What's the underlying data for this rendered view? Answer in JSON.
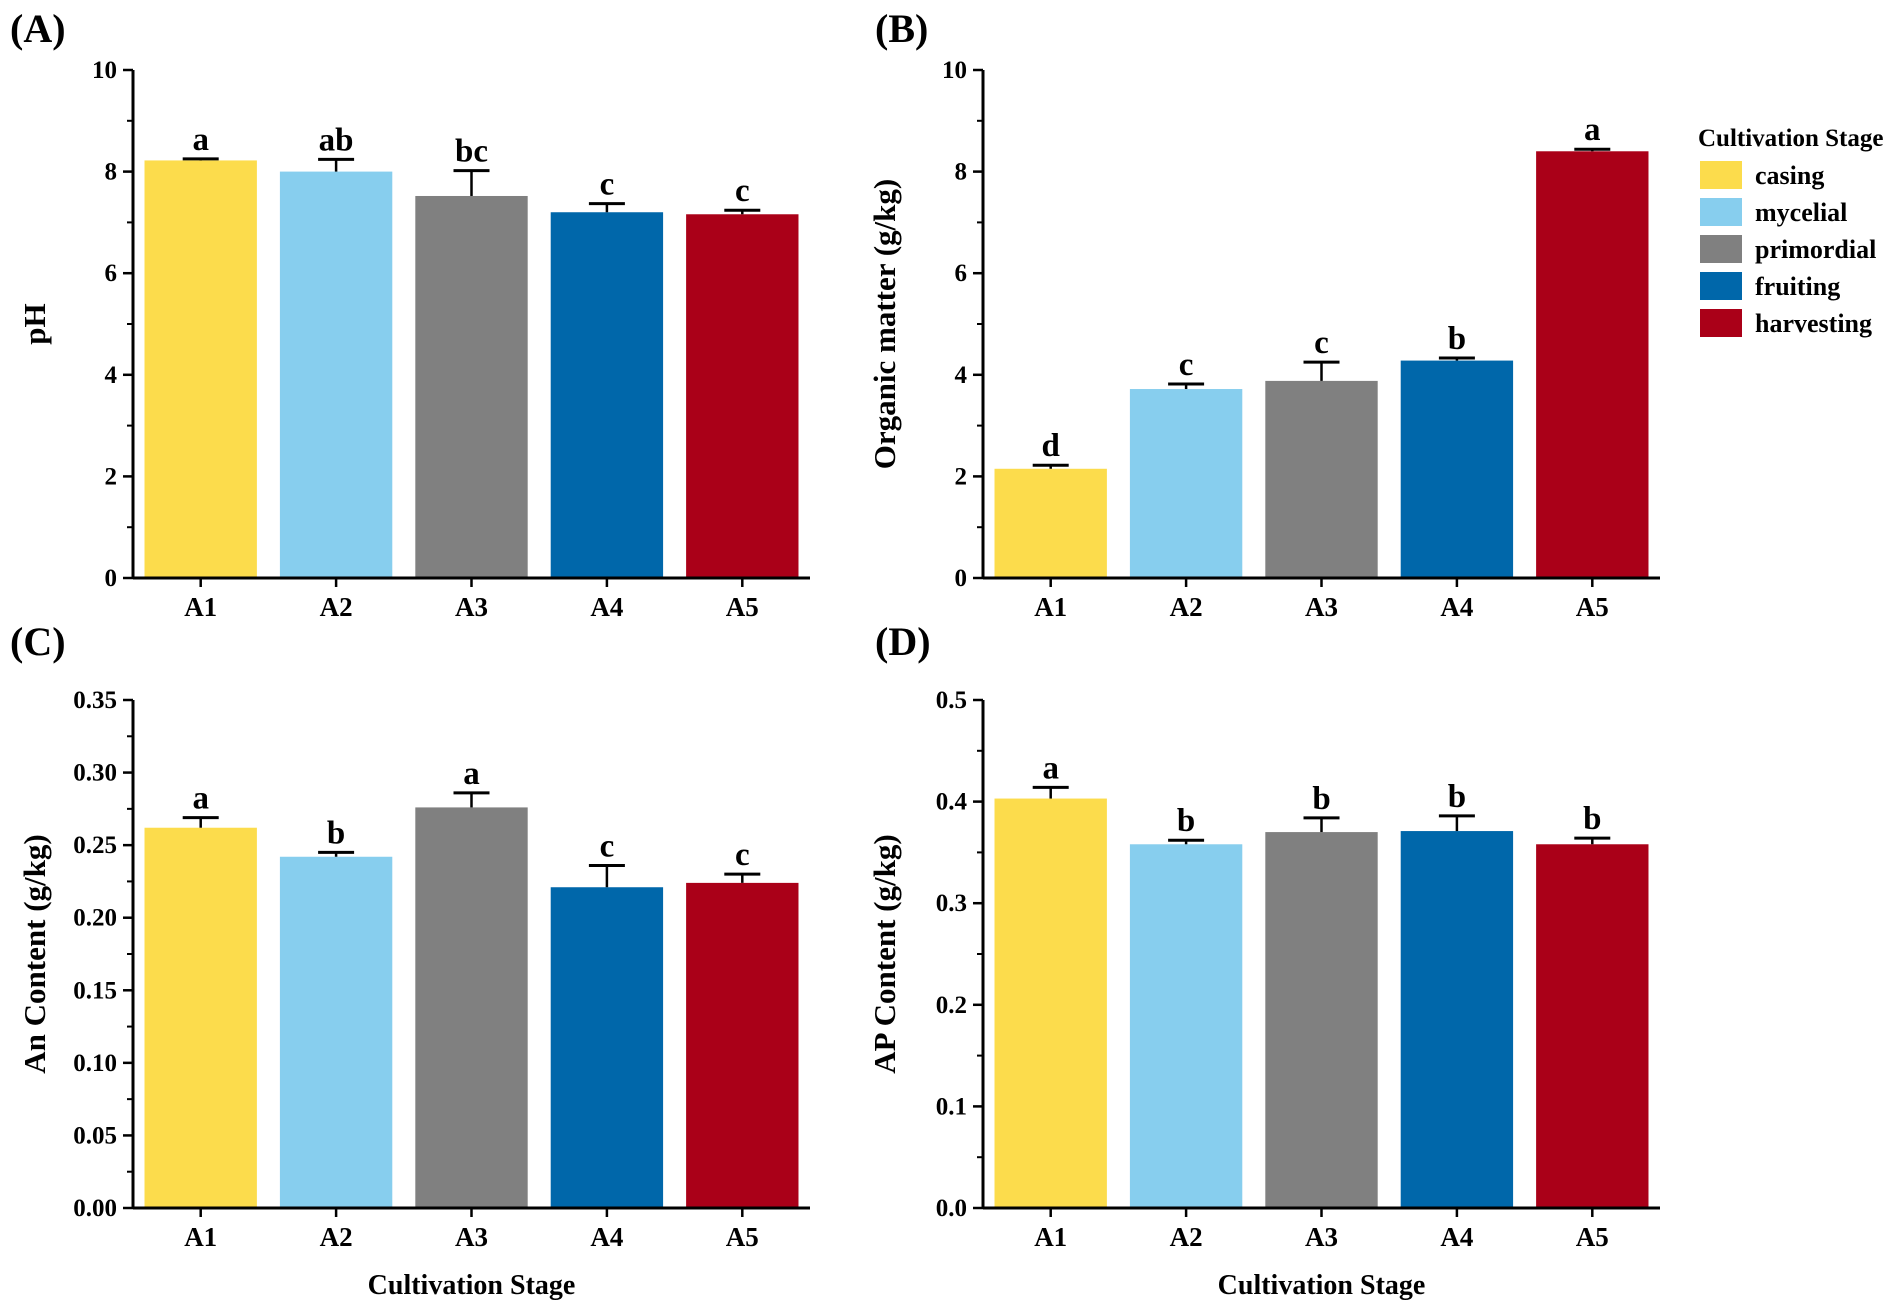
{
  "chart_data": [
    {
      "panel": "(A)",
      "type": "bar",
      "categories": [
        "A1",
        "A2",
        "A3",
        "A4",
        "A5"
      ],
      "values": [
        8.22,
        8.0,
        7.52,
        7.2,
        7.16
      ],
      "errors": [
        0.03,
        0.24,
        0.5,
        0.17,
        0.08
      ],
      "significance": [
        "a",
        "ab",
        "bc",
        "c",
        "c"
      ],
      "ylabel": "pH",
      "xlabel": "",
      "ylim": [
        0,
        10
      ],
      "yticks": [
        "0",
        "2",
        "4",
        "6",
        "8",
        "10"
      ]
    },
    {
      "panel": "(B)",
      "type": "bar",
      "categories": [
        "A1",
        "A2",
        "A3",
        "A4",
        "A5"
      ],
      "values": [
        2.15,
        3.72,
        3.88,
        4.28,
        8.4
      ],
      "errors": [
        0.07,
        0.1,
        0.37,
        0.05,
        0.04
      ],
      "significance": [
        "d",
        "c",
        "c",
        "b",
        "a"
      ],
      "ylabel": "Organic matter (g/kg)",
      "xlabel": "",
      "ylim": [
        0,
        10
      ],
      "yticks": [
        "0",
        "2",
        "4",
        "6",
        "8",
        "10"
      ]
    },
    {
      "panel": "(C)",
      "type": "bar",
      "categories": [
        "A1",
        "A2",
        "A3",
        "A4",
        "A5"
      ],
      "values": [
        0.262,
        0.242,
        0.276,
        0.221,
        0.224
      ],
      "errors": [
        0.007,
        0.003,
        0.01,
        0.015,
        0.006
      ],
      "significance": [
        "a",
        "b",
        "a",
        "c",
        "c"
      ],
      "ylabel": "An Content (g/kg)",
      "xlabel": "Cultivation Stage",
      "ylim": [
        0,
        0.35
      ],
      "yticks": [
        "0.00",
        "0.05",
        "0.10",
        "0.15",
        "0.20",
        "0.25",
        "0.30",
        "0.35"
      ]
    },
    {
      "panel": "(D)",
      "type": "bar",
      "categories": [
        "A1",
        "A2",
        "A3",
        "A4",
        "A5"
      ],
      "values": [
        0.403,
        0.358,
        0.37,
        0.371,
        0.358
      ],
      "errors": [
        0.011,
        0.004,
        0.014,
        0.015,
        0.006
      ],
      "significance": [
        "a",
        "b",
        "b",
        "b",
        "b"
      ],
      "ylabel": "AP Content (g/kg)",
      "xlabel": "Cultivation Stage",
      "ylim": [
        0,
        0.5
      ],
      "yticks": [
        "0.0",
        "0.1",
        "0.2",
        "0.3",
        "0.4",
        "0.5"
      ]
    }
  ],
  "legend": {
    "title": "Cultivation Stage",
    "placement": "right of panel B",
    "items": [
      {
        "label": "casing",
        "color": "#FCDC4C"
      },
      {
        "label": "mycelial",
        "color": "#87CEEE"
      },
      {
        "label": "primordial",
        "color": "#808080"
      },
      {
        "label": "fruiting",
        "color": "#0067AA"
      },
      {
        "label": "harvesting",
        "color": "#AA0018"
      }
    ]
  }
}
